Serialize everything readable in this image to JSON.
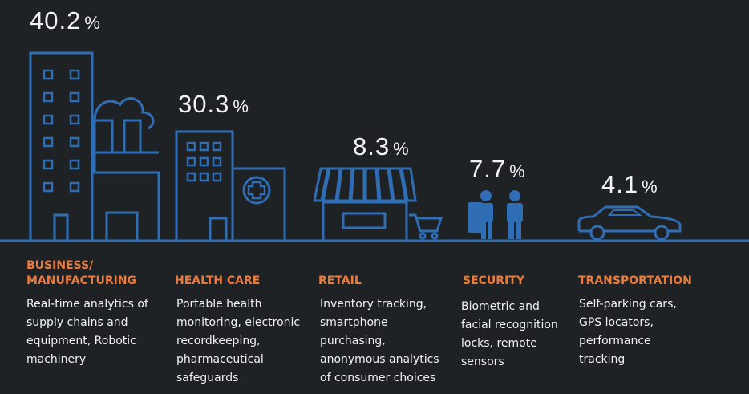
{
  "sectors": [
    {
      "percent": 40.2,
      "unit": "%",
      "label": "BUSINESS/\nMANUFACTURING",
      "description": "Real-time analytics of supply chains and equipment, Robotic machinery"
    },
    {
      "percent": 30.3,
      "unit": "%",
      "label": "HEALTH CARE",
      "description": "Portable health monitoring, electronic recordkeeping, pharmaceutical safeguards"
    },
    {
      "percent": 8.3,
      "unit": "%",
      "label": "RETAIL",
      "description": "Inventory tracking, smartphone purchasing, anonymous analytics of consumer choices"
    },
    {
      "percent": 7.7,
      "unit": "%",
      "label": "SECURITY",
      "description": "Biometric and facial recognition locks, remote sensors"
    },
    {
      "percent": 4.1,
      "unit": "%",
      "label": "TRANSPORTATION",
      "description": "Self-parking cars, GPS locators, performance tracking"
    }
  ]
}
